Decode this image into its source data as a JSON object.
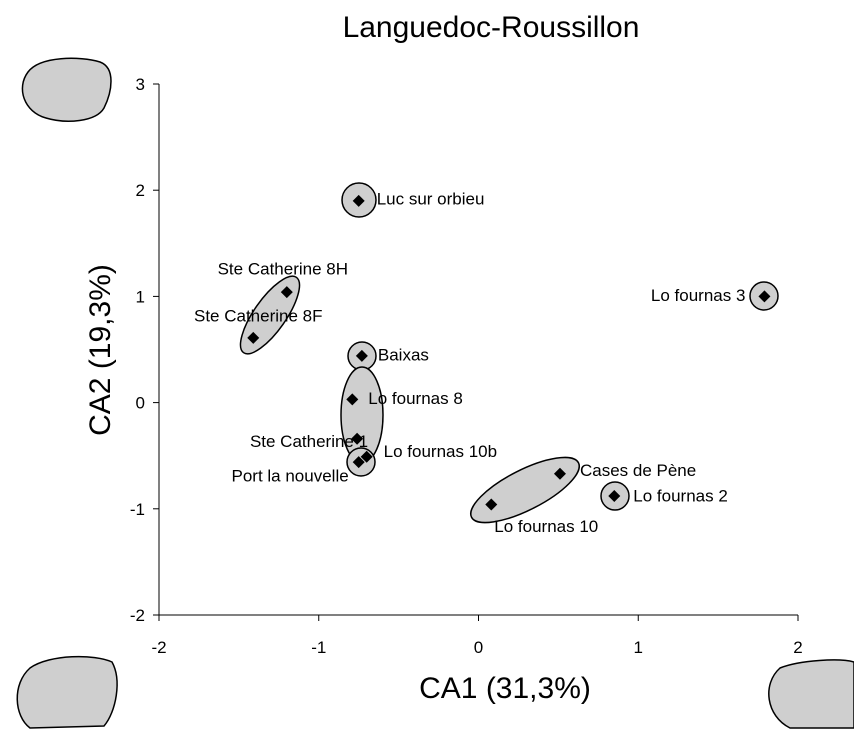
{
  "chart_data": {
    "type": "scatter",
    "title": "Languedoc-Roussillon",
    "x_label": "CA1 (31,3%)",
    "y_label": "CA2 (19,3%)",
    "labels": [
      "Luc sur orbieu",
      "Ste Catherine 8H",
      "Ste Catherine 8F",
      "Baixas",
      "Lo fournas 8",
      "Ste Catherine 1",
      "Lo fournas 10b",
      "Port la nouvelle",
      "Cases de Pène",
      "Lo fournas 10",
      "Lo fournas 2",
      "Lo fournas 3"
    ],
    "x": [
      -0.75,
      -1.2,
      -1.41,
      -0.73,
      -0.79,
      -0.76,
      -0.7,
      -0.75,
      0.51,
      0.08,
      0.85,
      1.79
    ],
    "values": [
      1.9,
      1.04,
      0.61,
      0.44,
      0.03,
      -0.34,
      -0.51,
      -0.56,
      -0.67,
      -0.96,
      -0.88,
      1.0
    ],
    "color": "#000000",
    "xlim": [
      -2,
      2
    ],
    "xticks": [
      -2,
      -1,
      0,
      1,
      2
    ],
    "ylim": [
      -2,
      3
    ],
    "yticks": [
      -2,
      -1,
      0,
      1,
      2,
      3
    ]
  }
}
